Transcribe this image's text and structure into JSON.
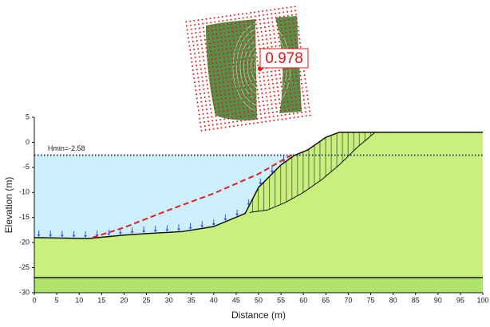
{
  "chart_data": {
    "type": "slope",
    "x_label": "Distance (m)",
    "y_label": "Elevation (m)",
    "xlim": [
      0,
      100
    ],
    "ylim": [
      -30,
      5
    ],
    "xticks": [
      0,
      5,
      10,
      15,
      20,
      25,
      30,
      35,
      40,
      45,
      50,
      55,
      60,
      65,
      70,
      75,
      80,
      85,
      90,
      95,
      100
    ],
    "yticks": [
      5,
      0,
      -5,
      -10,
      -15,
      -20,
      -25,
      -30
    ],
    "ground": {
      "x": [
        0,
        12,
        20,
        25,
        33,
        40,
        47,
        50,
        55,
        58,
        61,
        65,
        68,
        100
      ],
      "y": [
        -19,
        -19.2,
        -18.5,
        -18.2,
        -17.8,
        -16.8,
        -14.2,
        -9,
        -4.5,
        -2.6,
        -1.5,
        1,
        2,
        2
      ],
      "color": "#c9f07e"
    },
    "layer_boundary": {
      "value": -27,
      "color": "#aee46a"
    },
    "water_table": {
      "value": -2.58,
      "label": "Hmin=-2.58",
      "color": "#1a2ecc",
      "fill": "#cdeefb"
    },
    "dashed_line": {
      "x": [
        13,
        20,
        30,
        40,
        50,
        58
      ],
      "y": [
        -19,
        -17,
        -13.5,
        -10.2,
        -6.3,
        -2.2
      ],
      "color": "#e02020"
    },
    "slip_surface": {
      "x": [
        48,
        52,
        56,
        60,
        64,
        68,
        72,
        76
      ],
      "y": [
        -14,
        -13.5,
        -12,
        -10,
        -7.5,
        -4.5,
        -1,
        2
      ],
      "color": "#111111"
    },
    "factor_of_safety": 0.978
  }
}
